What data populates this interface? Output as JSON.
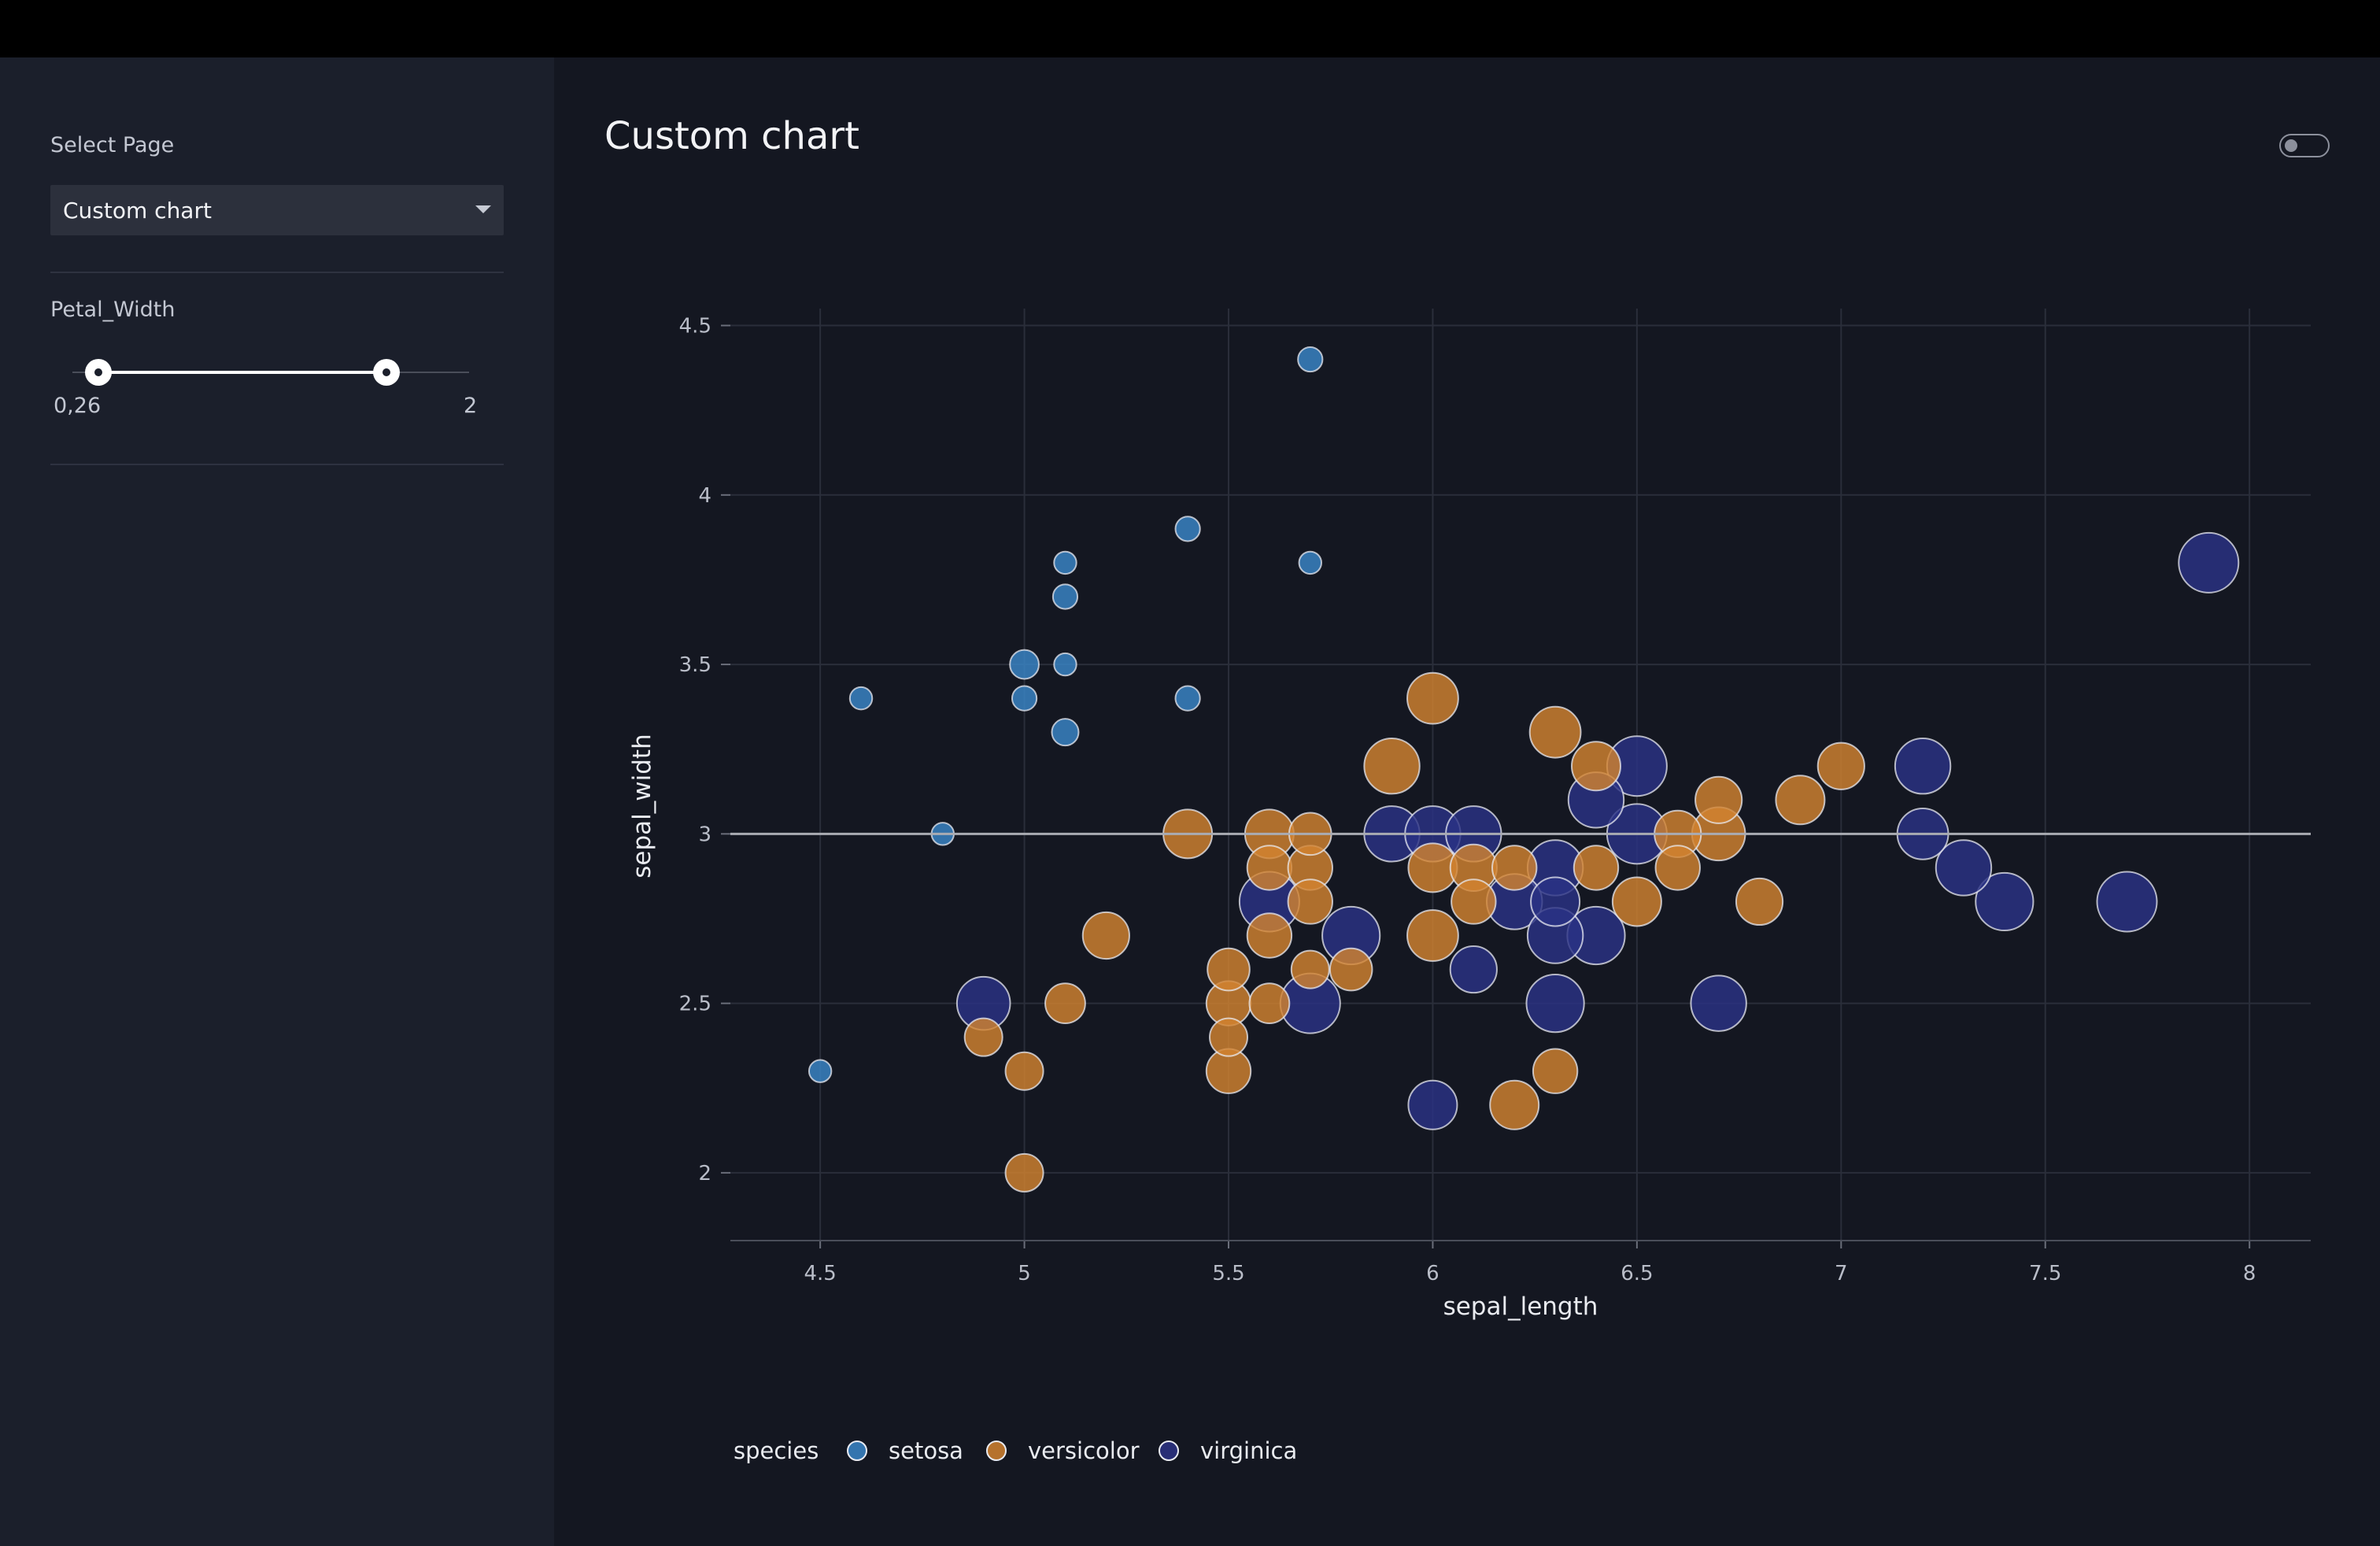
{
  "sidebar": {
    "select_label": "Select Page",
    "select_value": "Custom chart",
    "filter_label": "Petal_Width",
    "range_min_label": "0,26",
    "range_max_label": "2",
    "range": [
      0.26,
      2
    ]
  },
  "main": {
    "title": "Custom chart",
    "theme_toggle": "off"
  },
  "colors": {
    "setosa": "#3a86c8",
    "versicolor": "#d2832f",
    "virginica": "#2b3285",
    "refline": "#a9abb2"
  },
  "chart_data": {
    "type": "scatter",
    "xlabel": "sepal_length",
    "ylabel": "sepal_width",
    "xlim": [
      4.28,
      8.15
    ],
    "ylim": [
      1.8,
      4.55
    ],
    "xticks": [
      "4.5",
      "5",
      "5.5",
      "6",
      "6.5",
      "7",
      "7.5",
      "8"
    ],
    "yticks": [
      "2",
      "2.5",
      "3",
      "3.5",
      "4",
      "4.5"
    ],
    "reference_line_y": 3,
    "legend_title": "species",
    "legend_position": "bottom",
    "size_variable": "petal_width",
    "series": [
      {
        "name": "setosa",
        "points": [
          {
            "x": 5.7,
            "y": 4.4,
            "s": 0.4
          },
          {
            "x": 5.4,
            "y": 3.9,
            "s": 0.4
          },
          {
            "x": 5.1,
            "y": 3.8,
            "s": 0.3
          },
          {
            "x": 5.7,
            "y": 3.8,
            "s": 0.3
          },
          {
            "x": 5.1,
            "y": 3.7,
            "s": 0.4
          },
          {
            "x": 5.0,
            "y": 3.5,
            "s": 0.6
          },
          {
            "x": 5.1,
            "y": 3.5,
            "s": 0.3
          },
          {
            "x": 4.6,
            "y": 3.4,
            "s": 0.3
          },
          {
            "x": 5.0,
            "y": 3.4,
            "s": 0.4
          },
          {
            "x": 5.4,
            "y": 3.4,
            "s": 0.4
          },
          {
            "x": 5.1,
            "y": 3.3,
            "s": 0.5
          },
          {
            "x": 4.8,
            "y": 3.0,
            "s": 0.3
          },
          {
            "x": 4.5,
            "y": 2.3,
            "s": 0.3
          }
        ]
      },
      {
        "name": "versicolor",
        "points": [
          {
            "x": 6.0,
            "y": 3.4,
            "s": 1.6
          },
          {
            "x": 6.3,
            "y": 3.3,
            "s": 1.6
          },
          {
            "x": 5.9,
            "y": 3.2,
            "s": 1.8
          },
          {
            "x": 6.4,
            "y": 3.2,
            "s": 1.5
          },
          {
            "x": 7.0,
            "y": 3.2,
            "s": 1.4
          },
          {
            "x": 6.7,
            "y": 3.1,
            "s": 1.4
          },
          {
            "x": 6.9,
            "y": 3.1,
            "s": 1.5
          },
          {
            "x": 5.4,
            "y": 3.0,
            "s": 1.5
          },
          {
            "x": 5.6,
            "y": 3.0,
            "s": 1.5
          },
          {
            "x": 5.7,
            "y": 3.0,
            "s": 1.2
          },
          {
            "x": 6.6,
            "y": 3.0,
            "s": 1.4
          },
          {
            "x": 6.7,
            "y": 3.0,
            "s": 1.7
          },
          {
            "x": 5.6,
            "y": 2.9,
            "s": 1.3
          },
          {
            "x": 5.7,
            "y": 2.9,
            "s": 1.3
          },
          {
            "x": 6.0,
            "y": 2.9,
            "s": 1.5
          },
          {
            "x": 6.1,
            "y": 2.9,
            "s": 1.4
          },
          {
            "x": 6.2,
            "y": 2.9,
            "s": 1.3
          },
          {
            "x": 6.4,
            "y": 2.9,
            "s": 1.3
          },
          {
            "x": 6.6,
            "y": 2.9,
            "s": 1.3
          },
          {
            "x": 5.7,
            "y": 2.8,
            "s": 1.3
          },
          {
            "x": 6.1,
            "y": 2.8,
            "s": 1.3
          },
          {
            "x": 6.5,
            "y": 2.8,
            "s": 1.5
          },
          {
            "x": 6.8,
            "y": 2.8,
            "s": 1.4
          },
          {
            "x": 5.2,
            "y": 2.7,
            "s": 1.4
          },
          {
            "x": 5.6,
            "y": 2.7,
            "s": 1.3
          },
          {
            "x": 6.0,
            "y": 2.7,
            "s": 1.6
          },
          {
            "x": 5.5,
            "y": 2.6,
            "s": 1.2
          },
          {
            "x": 5.7,
            "y": 2.6,
            "s": 1.0
          },
          {
            "x": 5.8,
            "y": 2.6,
            "s": 1.2
          },
          {
            "x": 4.9,
            "y": 2.4,
            "s": 1.0
          },
          {
            "x": 5.1,
            "y": 2.5,
            "s": 1.1
          },
          {
            "x": 5.5,
            "y": 2.5,
            "s": 1.3
          },
          {
            "x": 5.6,
            "y": 2.5,
            "s": 1.1
          },
          {
            "x": 5.5,
            "y": 2.4,
            "s": 1.0
          },
          {
            "x": 5.0,
            "y": 2.3,
            "s": 1.0
          },
          {
            "x": 5.5,
            "y": 2.3,
            "s": 1.3
          },
          {
            "x": 6.3,
            "y": 2.3,
            "s": 1.3
          },
          {
            "x": 6.2,
            "y": 2.2,
            "s": 1.5
          },
          {
            "x": 5.0,
            "y": 2.0,
            "s": 1.0
          }
        ]
      },
      {
        "name": "virginica",
        "points": [
          {
            "x": 7.9,
            "y": 3.8,
            "s": 2.0
          },
          {
            "x": 6.5,
            "y": 3.2,
            "s": 2.0
          },
          {
            "x": 7.2,
            "y": 3.2,
            "s": 1.8
          },
          {
            "x": 6.4,
            "y": 3.1,
            "s": 1.8
          },
          {
            "x": 5.9,
            "y": 3.0,
            "s": 1.8
          },
          {
            "x": 6.0,
            "y": 3.0,
            "s": 1.8
          },
          {
            "x": 6.1,
            "y": 3.0,
            "s": 1.8
          },
          {
            "x": 6.5,
            "y": 3.0,
            "s": 2.0
          },
          {
            "x": 7.2,
            "y": 3.0,
            "s": 1.6
          },
          {
            "x": 6.3,
            "y": 2.9,
            "s": 1.8
          },
          {
            "x": 7.3,
            "y": 2.9,
            "s": 1.8
          },
          {
            "x": 5.6,
            "y": 2.8,
            "s": 2.0
          },
          {
            "x": 6.2,
            "y": 2.8,
            "s": 1.8
          },
          {
            "x": 6.3,
            "y": 2.8,
            "s": 1.5
          },
          {
            "x": 7.4,
            "y": 2.8,
            "s": 1.9
          },
          {
            "x": 7.7,
            "y": 2.8,
            "s": 2.0
          },
          {
            "x": 5.8,
            "y": 2.7,
            "s": 1.9
          },
          {
            "x": 6.3,
            "y": 2.7,
            "s": 1.8
          },
          {
            "x": 6.4,
            "y": 2.7,
            "s": 1.9
          },
          {
            "x": 6.1,
            "y": 2.6,
            "s": 1.4
          },
          {
            "x": 4.9,
            "y": 2.5,
            "s": 1.7
          },
          {
            "x": 5.7,
            "y": 2.5,
            "s": 2.0
          },
          {
            "x": 6.3,
            "y": 2.5,
            "s": 1.9
          },
          {
            "x": 6.7,
            "y": 2.5,
            "s": 1.8
          },
          {
            "x": 6.0,
            "y": 2.2,
            "s": 1.5
          }
        ]
      }
    ]
  }
}
